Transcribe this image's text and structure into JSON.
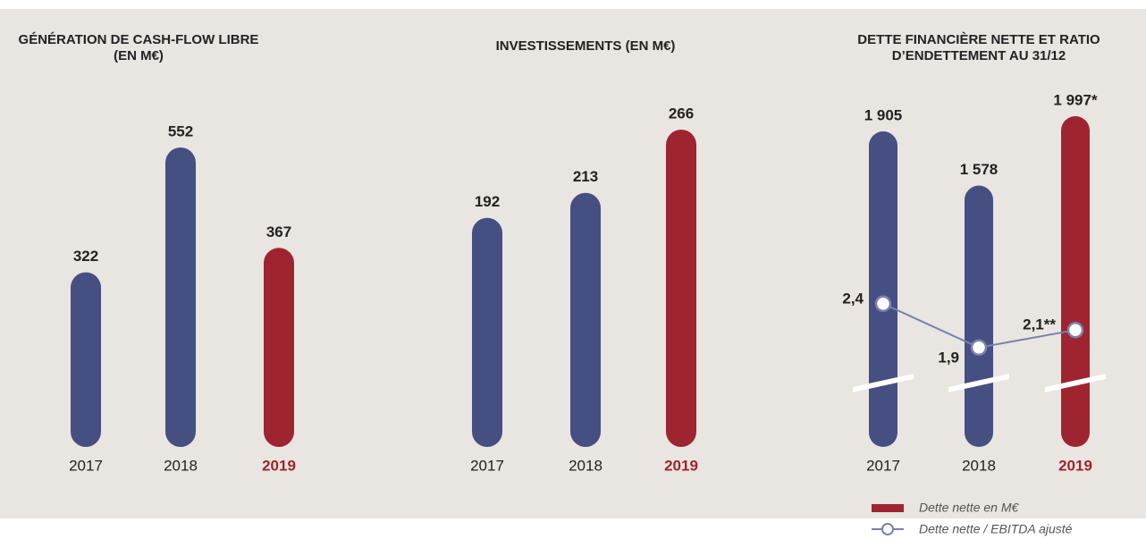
{
  "chart_data": [
    {
      "type": "bar",
      "title": [
        "GÉNÉRATION DE CASH-FLOW LIBRE",
        "(EN M€)"
      ],
      "categories": [
        "2017",
        "2018",
        "2019"
      ],
      "values": [
        322,
        552,
        367
      ],
      "colors": [
        "#454f82",
        "#454f82",
        "#9e2430"
      ]
    },
    {
      "type": "bar",
      "title": [
        "INVESTISSEMENTS (EN M€)"
      ],
      "categories": [
        "2017",
        "2018",
        "2019"
      ],
      "values": [
        192,
        213,
        266
      ],
      "colors": [
        "#454f82",
        "#454f82",
        "#9e2430"
      ]
    },
    {
      "type": "bar_line",
      "title": [
        "DETTE FINANCIÈRE NETTE ET RATIO",
        "D’ENDETTEMENT AU 31/12"
      ],
      "categories": [
        "2017",
        "2018",
        "2019"
      ],
      "series": [
        {
          "name": "Dette nette en M€",
          "color": "#9e2430",
          "colors": [
            "#454f82",
            "#454f82",
            "#9e2430"
          ],
          "values": [
            1905,
            1578,
            1997
          ],
          "value_labels": [
            "1 905",
            "1 578",
            "1 997*"
          ]
        },
        {
          "name": "Dette nette / EBITDA ajusté",
          "color": "#7a80b0",
          "values": [
            2.4,
            1.9,
            2.1
          ],
          "value_labels": [
            "2,4",
            "1,9",
            "2,1**"
          ]
        }
      ]
    }
  ]
}
